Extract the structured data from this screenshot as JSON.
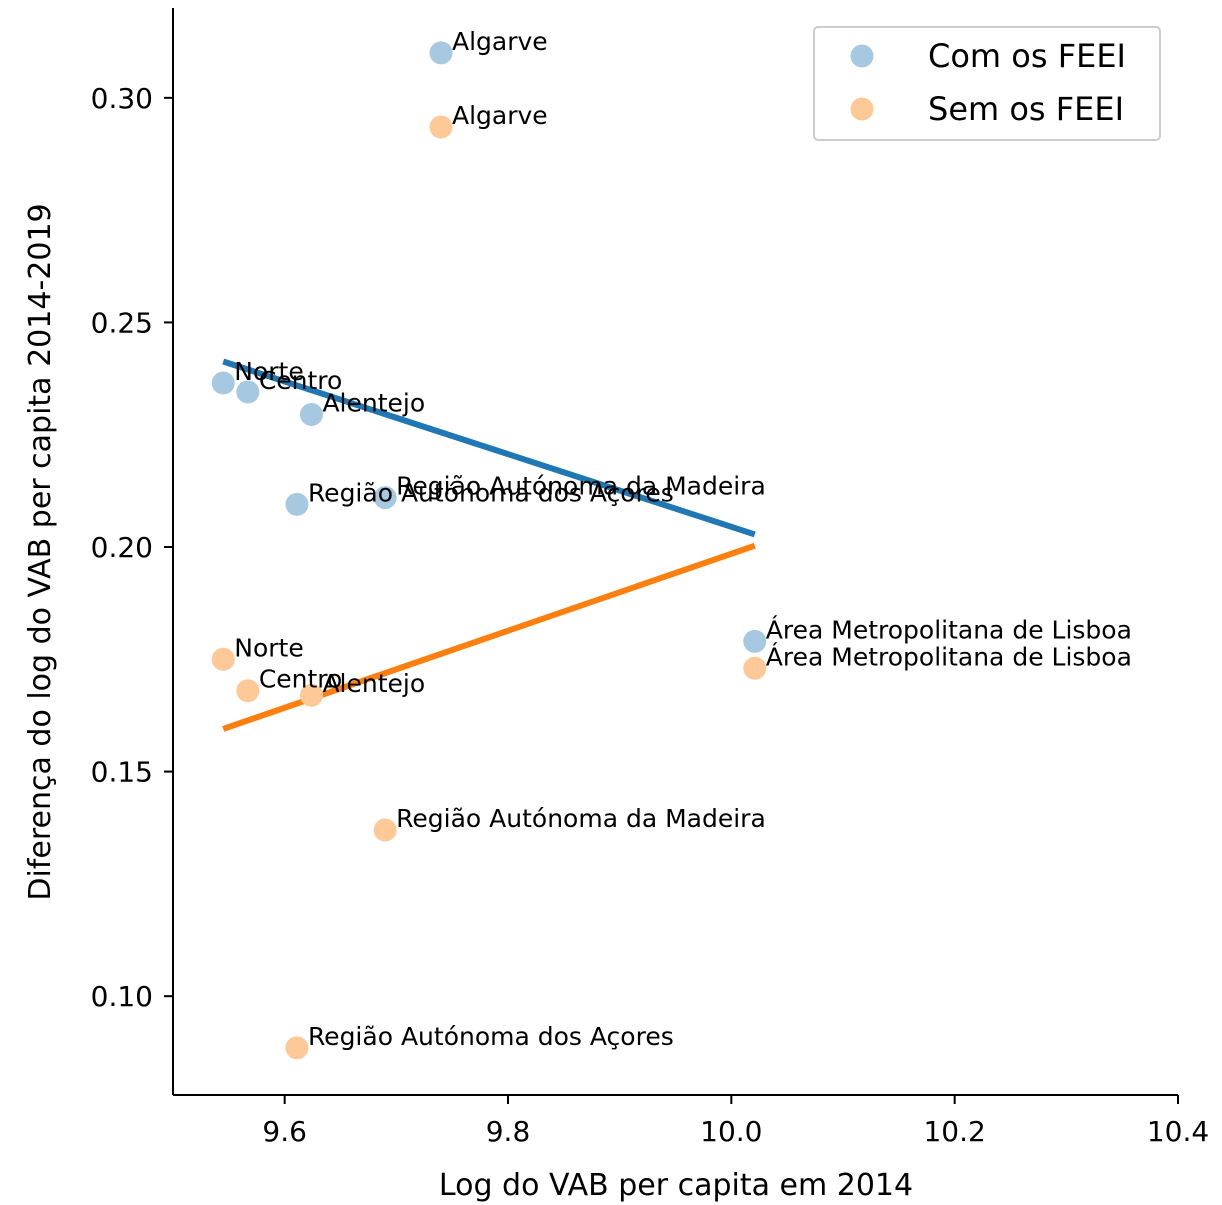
{
  "chart_data": {
    "type": "scatter",
    "title": "",
    "xlabel": "Log do VAB per capita em 2014",
    "ylabel": "Diferença do log do VAB per capita 2014-2019",
    "xlim": [
      9.5,
      10.4
    ],
    "ylim": [
      0.078,
      0.32
    ],
    "xticks": [
      9.6,
      9.8,
      10.0,
      10.2,
      10.4
    ],
    "xtick_labels": [
      "9.6",
      "9.8",
      "10.0",
      "10.2",
      "10.4"
    ],
    "yticks": [
      0.1,
      0.15,
      0.2,
      0.25,
      0.3
    ],
    "ytick_labels": [
      "0.10",
      "0.15",
      "0.20",
      "0.25",
      "0.30"
    ],
    "grid": false,
    "legend_position": "top-right",
    "series": [
      {
        "name": "Com os FEEI",
        "color": "#a6c8e1",
        "line_color": "#1f77b4",
        "points": [
          {
            "label": "Algarve",
            "x": 9.74,
            "y": 0.31
          },
          {
            "label": "Norte",
            "x": 9.545,
            "y": 0.2365
          },
          {
            "label": "Centro",
            "x": 9.567,
            "y": 0.2345
          },
          {
            "label": "Alentejo",
            "x": 9.624,
            "y": 0.2295
          },
          {
            "label": "Região Autónoma dos Açores",
            "x": 9.611,
            "y": 0.2095
          },
          {
            "label": "Região Autónoma da Madeira",
            "x": 9.69,
            "y": 0.211
          },
          {
            "label": "Área Metropolitana de Lisboa",
            "x": 10.021,
            "y": 0.179
          }
        ],
        "trend": {
          "x": [
            9.545,
            10.021
          ],
          "y": [
            0.2413,
            0.2028
          ]
        }
      },
      {
        "name": "Sem os FEEI",
        "color": "#ffc897",
        "line_color": "#ff7f0e",
        "points": [
          {
            "label": "Algarve",
            "x": 9.74,
            "y": 0.2935
          },
          {
            "label": "Norte",
            "x": 9.545,
            "y": 0.175
          },
          {
            "label": "Centro",
            "x": 9.567,
            "y": 0.168
          },
          {
            "label": "Alentejo",
            "x": 9.624,
            "y": 0.167
          },
          {
            "label": "Região Autónoma da Madeira",
            "x": 9.69,
            "y": 0.137
          },
          {
            "label": "Região Autónoma dos Açores",
            "x": 9.611,
            "y": 0.0885
          },
          {
            "label": "Área Metropolitana de Lisboa",
            "x": 10.021,
            "y": 0.173
          }
        ],
        "trend": {
          "x": [
            9.545,
            10.021
          ],
          "y": [
            0.1595,
            0.2003
          ]
        }
      }
    ]
  }
}
